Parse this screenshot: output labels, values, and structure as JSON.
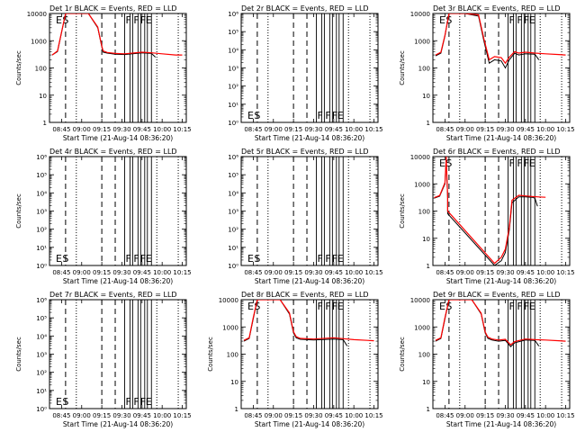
{
  "figure": {
    "xlabel": "Start Time (21-Aug-14 08:36:20)",
    "ylabel": "Counts/sec",
    "x_tick_labels": [
      "08:45",
      "09:00",
      "09:15",
      "09:30",
      "09:45",
      "10:00",
      "10:15"
    ],
    "colors": {
      "events": "#000000",
      "lld": "#ff0000"
    }
  },
  "chart_data": [
    {
      "type": "line",
      "title": "Det 1r BLACK = Events, RED = LLD",
      "xlabel": "Start Time (21-Aug-14 08:36:20)",
      "ylabel": "Counts/sec",
      "y_scale": "log",
      "ylim": [
        1,
        10000
      ],
      "y_tick_labels": [
        "1",
        "10",
        "100",
        "1000",
        "10000"
      ],
      "markers": [
        "E",
        "S",
        "F",
        "F",
        "F",
        "E"
      ],
      "series": [
        {
          "name": "Events",
          "color": "#000000",
          "x": [
            "08:38",
            "08:42",
            "08:45",
            "08:48",
            "08:52",
            "09:05",
            "09:12",
            "09:15",
            "09:16",
            "09:19",
            "09:25",
            "09:32",
            "09:45",
            "09:52",
            "09:55"
          ],
          "y": [
            300,
            400,
            2000,
            10000,
            10000,
            10000,
            3000,
            600,
            380,
            350,
            320,
            310,
            360,
            340,
            250
          ]
        },
        {
          "name": "LLD",
          "color": "#ff0000",
          "x": [
            "08:38",
            "08:42",
            "08:45",
            "08:48",
            "08:52",
            "09:05",
            "09:12",
            "09:15",
            "09:16",
            "09:19",
            "09:25",
            "09:32",
            "09:45",
            "09:52",
            "10:00",
            "10:10",
            "10:15"
          ],
          "y": [
            300,
            420,
            2100,
            10000,
            10000,
            10000,
            3200,
            640,
            420,
            370,
            340,
            330,
            380,
            360,
            330,
            300,
            300
          ]
        }
      ]
    },
    {
      "type": "line",
      "title": "Det 2r BLACK = Events, RED = LLD",
      "xlabel": "Start Time (21-Aug-14 08:36:20)",
      "ylabel": "",
      "y_scale": "log",
      "ylim": [
        1,
        1000000
      ],
      "y_tick_labels": [
        "10⁰",
        "10¹",
        "10²",
        "10³",
        "10⁴",
        "10⁵",
        "10⁶"
      ],
      "markers": [
        "E",
        "S",
        "F",
        "F",
        "F",
        "E"
      ],
      "series": []
    },
    {
      "type": "line",
      "title": "Det 3r BLACK = Events, RED = LLD",
      "xlabel": "Start Time (21-Aug-14 08:36:20)",
      "ylabel": "Counts/sec",
      "y_scale": "log",
      "ylim": [
        1,
        10000
      ],
      "y_tick_labels": [
        "1",
        "10",
        "100",
        "1000",
        "10000"
      ],
      "markers": [
        "E",
        "S",
        "F",
        "F",
        "F",
        "E"
      ],
      "series": [
        {
          "name": "Events",
          "color": "#000000",
          "x": [
            "08:38",
            "08:42",
            "08:45",
            "08:48",
            "09:00",
            "09:10",
            "09:14",
            "09:18",
            "09:22",
            "09:27",
            "09:30",
            "09:33",
            "09:37",
            "09:40",
            "09:45",
            "09:52",
            "09:55"
          ],
          "y": [
            280,
            350,
            1500,
            10000,
            10000,
            8000,
            1000,
            150,
            200,
            180,
            100,
            200,
            350,
            300,
            330,
            320,
            200
          ]
        },
        {
          "name": "LLD",
          "color": "#ff0000",
          "x": [
            "08:38",
            "08:42",
            "08:45",
            "08:48",
            "09:00",
            "09:10",
            "09:14",
            "09:18",
            "09:22",
            "09:27",
            "09:30",
            "09:33",
            "09:37",
            "09:40",
            "09:45",
            "09:52",
            "10:00",
            "10:10",
            "10:15"
          ],
          "y": [
            300,
            380,
            1600,
            10000,
            10000,
            9000,
            1200,
            200,
            260,
            240,
            150,
            250,
            400,
            350,
            380,
            350,
            330,
            310,
            300
          ]
        }
      ]
    },
    {
      "type": "line",
      "title": "Det 4r BLACK = Events, RED = LLD",
      "xlabel": "Start Time (21-Aug-14 08:36:20)",
      "ylabel": "Counts/sec",
      "y_scale": "log",
      "ylim": [
        1,
        1000000
      ],
      "y_tick_labels": [
        "10⁰",
        "10¹",
        "10²",
        "10³",
        "10⁴",
        "10⁵",
        "10⁶"
      ],
      "markers": [
        "E",
        "S",
        "F",
        "F",
        "F",
        "E"
      ],
      "series": []
    },
    {
      "type": "line",
      "title": "Det 5r BLACK = Events, RED = LLD",
      "xlabel": "Start Time (21-Aug-14 08:36:20)",
      "ylabel": "",
      "y_scale": "log",
      "ylim": [
        1,
        1000000
      ],
      "y_tick_labels": [
        "10⁰",
        "10¹",
        "10²",
        "10³",
        "10⁴",
        "10⁵",
        "10⁶"
      ],
      "markers": [
        "E",
        "S",
        "F",
        "F",
        "F",
        "E"
      ],
      "series": []
    },
    {
      "type": "line",
      "title": "Det 6r BLACK = Events, RED = LLD",
      "xlabel": "Start Time (21-Aug-14 08:36:20)",
      "ylabel": "Counts/sec",
      "y_scale": "log",
      "ylim": [
        1,
        10000
      ],
      "y_tick_labels": [
        "1",
        "10",
        "100",
        "1000",
        "10000"
      ],
      "markers": [
        "E",
        "S",
        "F",
        "F",
        "F",
        "E"
      ],
      "series": [
        {
          "name": "Events",
          "color": "#000000",
          "x": [
            "08:37",
            "08:41",
            "08:45",
            "08:46",
            "08:46",
            "08:47",
            "08:47",
            "09:22",
            "09:27",
            "09:30",
            "09:33",
            "09:35",
            "09:40",
            "09:45",
            "09:50",
            "09:52",
            "09:54"
          ],
          "y": [
            300,
            350,
            1000,
            10000,
            6000,
            300,
            80,
            1,
            1.5,
            3,
            20,
            200,
            330,
            330,
            320,
            300,
            150
          ]
        },
        {
          "name": "LLD",
          "color": "#ff0000",
          "x": [
            "08:37",
            "08:41",
            "08:45",
            "08:46",
            "08:46",
            "08:47",
            "08:47",
            "09:22",
            "09:27",
            "09:30",
            "09:33",
            "09:35",
            "09:40",
            "09:45",
            "09:50",
            "09:55",
            "10:00"
          ],
          "y": [
            310,
            370,
            1100,
            10000,
            7000,
            350,
            100,
            1.2,
            2,
            4,
            25,
            250,
            380,
            360,
            340,
            330,
            320
          ]
        }
      ]
    },
    {
      "type": "line",
      "title": "Det 7r BLACK = Events, RED = LLD",
      "xlabel": "Start Time (21-Aug-14 08:36:20)",
      "ylabel": "Counts/sec",
      "y_scale": "log",
      "ylim": [
        1,
        1000000
      ],
      "y_tick_labels": [
        "10⁰",
        "10¹",
        "10²",
        "10³",
        "10⁴",
        "10⁵",
        "10⁶"
      ],
      "markers": [
        "E",
        "S",
        "F",
        "F",
        "F",
        "E"
      ],
      "series": []
    },
    {
      "type": "line",
      "title": "Det 8r BLACK = Events, RED = LLD",
      "xlabel": "Start Time (21-Aug-14 08:36:20)",
      "ylabel": "Counts/sec",
      "y_scale": "log",
      "ylim": [
        1,
        10000
      ],
      "y_tick_labels": [
        "1",
        "10",
        "100",
        "1000",
        "10000"
      ],
      "markers": [
        "E",
        "S",
        "F",
        "F",
        "F",
        "E"
      ],
      "series": [
        {
          "name": "Events",
          "color": "#000000",
          "x": [
            "08:38",
            "08:42",
            "08:45",
            "08:48",
            "08:52",
            "09:05",
            "09:12",
            "09:15",
            "09:17",
            "09:20",
            "09:30",
            "09:45",
            "09:52",
            "09:55"
          ],
          "y": [
            300,
            380,
            2000,
            10000,
            10000,
            10000,
            3000,
            600,
            400,
            350,
            330,
            360,
            340,
            200
          ]
        },
        {
          "name": "LLD",
          "color": "#ff0000",
          "x": [
            "08:38",
            "08:42",
            "08:45",
            "08:48",
            "08:52",
            "09:05",
            "09:12",
            "09:15",
            "09:17",
            "09:20",
            "09:30",
            "09:45",
            "09:52",
            "10:00",
            "10:10",
            "10:15"
          ],
          "y": [
            320,
            400,
            2200,
            10000,
            10000,
            10000,
            3300,
            660,
            440,
            380,
            360,
            400,
            370,
            340,
            320,
            310
          ]
        }
      ]
    },
    {
      "type": "line",
      "title": "Det 9r BLACK = Events, RED = LLD",
      "xlabel": "Start Time (21-Aug-14 08:36:20)",
      "ylabel": "Counts/sec",
      "y_scale": "log",
      "ylim": [
        1,
        10000
      ],
      "y_tick_labels": [
        "1",
        "10",
        "100",
        "1000",
        "10000"
      ],
      "markers": [
        "E",
        "S",
        "F",
        "F",
        "F",
        "E"
      ],
      "series": [
        {
          "name": "Events",
          "color": "#000000",
          "x": [
            "08:38",
            "08:42",
            "08:45",
            "08:48",
            "08:55",
            "09:05",
            "09:12",
            "09:15",
            "09:17",
            "09:20",
            "09:25",
            "09:30",
            "09:34",
            "09:37",
            "09:45",
            "09:52",
            "09:55"
          ],
          "y": [
            300,
            380,
            2000,
            10000,
            10000,
            10000,
            3000,
            600,
            380,
            330,
            300,
            320,
            190,
            260,
            330,
            320,
            200
          ]
        },
        {
          "name": "LLD",
          "color": "#ff0000",
          "x": [
            "08:38",
            "08:42",
            "08:45",
            "08:48",
            "08:55",
            "09:05",
            "09:12",
            "09:15",
            "09:17",
            "09:20",
            "09:25",
            "09:30",
            "09:34",
            "09:37",
            "09:45",
            "09:52",
            "10:00",
            "10:10",
            "10:15"
          ],
          "y": [
            320,
            400,
            2200,
            10000,
            10000,
            10000,
            3200,
            650,
            420,
            360,
            330,
            350,
            220,
            290,
            360,
            340,
            330,
            310,
            300
          ]
        }
      ]
    }
  ]
}
